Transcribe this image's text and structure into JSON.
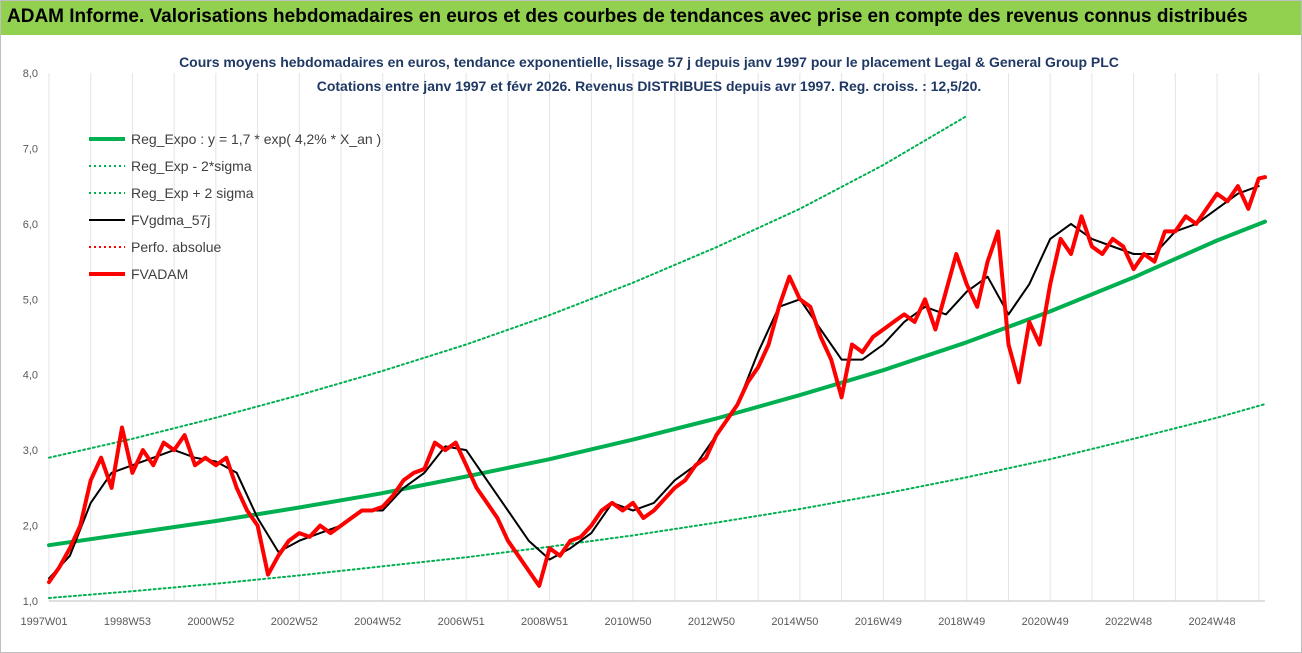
{
  "banner": {
    "title": "ADAM Informe. Valorisations hebdomadaires en euros et des courbes de tendances avec prise en compte des revenus connus distribués",
    "color": "#92d050"
  },
  "chart_data": {
    "type": "line",
    "title_lines": [
      "Cours moyens hebdomadaires en euros, tendance exponentielle, lissage 57 j depuis janv 1997 pour le placement Legal & General Group PLC",
      "Cotations entre janv 1997 et févr 2026. Revenus DISTRIBUES depuis avr 1997. Reg. croiss. : 12,5/20."
    ],
    "xlabel": "",
    "ylabel": "",
    "x_range": [
      1997.0,
      2026.15
    ],
    "ylim": [
      1.0,
      8.0
    ],
    "y_ticks": [
      "1,0",
      "2,0",
      "3,0",
      "4,0",
      "5,0",
      "6,0",
      "7,0",
      "8,0"
    ],
    "x_ticks": [
      {
        "label": "1997W01",
        "x": 1997.0
      },
      {
        "label": "1998W53",
        "x": 1999.0
      },
      {
        "label": "2000W52",
        "x": 2001.0
      },
      {
        "label": "2002W52",
        "x": 2003.0
      },
      {
        "label": "2004W52",
        "x": 2005.0
      },
      {
        "label": "2006W51",
        "x": 2007.0
      },
      {
        "label": "2008W51",
        "x": 2009.0
      },
      {
        "label": "2010W50",
        "x": 2011.0
      },
      {
        "label": "2012W50",
        "x": 2013.0
      },
      {
        "label": "2014W50",
        "x": 2015.0
      },
      {
        "label": "2016W49",
        "x": 2017.0
      },
      {
        "label": "2018W49",
        "x": 2019.0
      },
      {
        "label": "2020W49",
        "x": 2021.0
      },
      {
        "label": "2022W48",
        "x": 2023.0
      },
      {
        "label": "2024W48",
        "x": 2025.0
      }
    ],
    "grid": "vertical",
    "legend_position": "top-left",
    "legend": [
      {
        "name": "Reg_Expo : y = 1,7 * exp( 4,2% *  X_an )",
        "color": "#00b050",
        "style": "solid-thick"
      },
      {
        "name": "Reg_Exp - 2*sigma",
        "color": "#00b050",
        "style": "dotted"
      },
      {
        "name": "Reg_Exp + 2 sigma",
        "color": "#00b050",
        "style": "dotted"
      },
      {
        "name": "FVgdma_57j",
        "color": "#000000",
        "style": "solid"
      },
      {
        "name": "Perfo. absolue",
        "color": "#ff0000",
        "style": "dotted"
      },
      {
        "name": "FVADAM",
        "color": "#ff0000",
        "style": "solid-thick"
      }
    ],
    "series": [
      {
        "name": "Reg_Expo : y = 1,7 * exp( 4,2% *  X_an )",
        "color": "#00b050",
        "x": [
          1997.0,
          1999.0,
          2001.0,
          2003.0,
          2005.0,
          2007.0,
          2009.0,
          2011.0,
          2013.0,
          2015.0,
          2017.0,
          2019.0,
          2021.0,
          2023.0,
          2025.0,
          2026.15
        ],
        "values": [
          1.74,
          1.9,
          2.06,
          2.24,
          2.43,
          2.65,
          2.88,
          3.14,
          3.42,
          3.73,
          4.06,
          4.43,
          4.84,
          5.29,
          5.78,
          6.03
        ]
      },
      {
        "name": "Reg_Exp - 2*sigma",
        "color": "#00b050",
        "x": [
          1997.0,
          1999.0,
          2001.0,
          2003.0,
          2005.0,
          2007.0,
          2009.0,
          2011.0,
          2013.0,
          2015.0,
          2017.0,
          2019.0,
          2021.0,
          2023.0,
          2025.0,
          2026.15
        ],
        "values": [
          1.04,
          1.13,
          1.23,
          1.34,
          1.46,
          1.58,
          1.72,
          1.87,
          2.04,
          2.22,
          2.42,
          2.64,
          2.88,
          3.15,
          3.43,
          3.61
        ]
      },
      {
        "name": "Reg_Exp + 2 sigma",
        "color": "#00b050",
        "x": [
          1997.0,
          1999.0,
          2001.0,
          2003.0,
          2005.0,
          2007.0,
          2009.0,
          2011.0,
          2013.0,
          2015.0,
          2017.0,
          2019.0
        ],
        "values": [
          2.9,
          3.15,
          3.43,
          3.73,
          4.05,
          4.4,
          4.79,
          5.22,
          5.69,
          6.2,
          6.78,
          7.43
        ]
      },
      {
        "name": "FVgdma_57j",
        "color": "#000000",
        "x": [
          1997.0,
          1997.5,
          1998.0,
          1998.5,
          1999.0,
          1999.5,
          2000.0,
          2000.5,
          2001.0,
          2001.5,
          2002.0,
          2002.5,
          2003.0,
          2003.5,
          2004.0,
          2004.5,
          2005.0,
          2005.5,
          2006.0,
          2006.5,
          2007.0,
          2007.5,
          2008.0,
          2008.5,
          2009.0,
          2009.5,
          2010.0,
          2010.5,
          2011.0,
          2011.5,
          2012.0,
          2012.5,
          2013.0,
          2013.5,
          2014.0,
          2014.5,
          2015.0,
          2015.5,
          2016.0,
          2016.5,
          2017.0,
          2017.5,
          2018.0,
          2018.5,
          2019.0,
          2019.5,
          2020.0,
          2020.5,
          2021.0,
          2021.5,
          2022.0,
          2022.5,
          2023.0,
          2023.5,
          2024.0,
          2024.5,
          2025.0,
          2025.5,
          2026.0
        ],
        "values": [
          1.3,
          1.6,
          2.3,
          2.7,
          2.8,
          2.9,
          3.0,
          2.9,
          2.85,
          2.7,
          2.1,
          1.65,
          1.8,
          1.9,
          2.0,
          2.2,
          2.2,
          2.5,
          2.7,
          3.05,
          3.0,
          2.6,
          2.2,
          1.8,
          1.55,
          1.7,
          1.9,
          2.3,
          2.2,
          2.3,
          2.6,
          2.8,
          3.2,
          3.6,
          4.3,
          4.9,
          5.0,
          4.6,
          4.2,
          4.2,
          4.4,
          4.7,
          4.9,
          4.8,
          5.1,
          5.3,
          4.8,
          5.2,
          5.8,
          6.0,
          5.8,
          5.7,
          5.6,
          5.6,
          5.9,
          6.0,
          6.2,
          6.4,
          6.5
        ]
      },
      {
        "name": "FVADAM",
        "color": "#ff0000",
        "x": [
          1997.0,
          1997.25,
          1997.5,
          1997.75,
          1998.0,
          1998.25,
          1998.5,
          1998.75,
          1999.0,
          1999.25,
          1999.5,
          1999.75,
          2000.0,
          2000.25,
          2000.5,
          2000.75,
          2001.0,
          2001.25,
          2001.5,
          2001.75,
          2002.0,
          2002.25,
          2002.5,
          2002.75,
          2003.0,
          2003.25,
          2003.5,
          2003.75,
          2004.0,
          2004.25,
          2004.5,
          2004.75,
          2005.0,
          2005.25,
          2005.5,
          2005.75,
          2006.0,
          2006.25,
          2006.5,
          2006.75,
          2007.0,
          2007.25,
          2007.5,
          2007.75,
          2008.0,
          2008.25,
          2008.5,
          2008.75,
          2009.0,
          2009.25,
          2009.5,
          2009.75,
          2010.0,
          2010.25,
          2010.5,
          2010.75,
          2011.0,
          2011.25,
          2011.5,
          2011.75,
          2012.0,
          2012.25,
          2012.5,
          2012.75,
          2013.0,
          2013.25,
          2013.5,
          2013.75,
          2014.0,
          2014.25,
          2014.5,
          2014.75,
          2015.0,
          2015.25,
          2015.5,
          2015.75,
          2016.0,
          2016.25,
          2016.5,
          2016.75,
          2017.0,
          2017.25,
          2017.5,
          2017.75,
          2018.0,
          2018.25,
          2018.5,
          2018.75,
          2019.0,
          2019.25,
          2019.5,
          2019.75,
          2020.0,
          2020.25,
          2020.5,
          2020.75,
          2021.0,
          2021.25,
          2021.5,
          2021.75,
          2022.0,
          2022.25,
          2022.5,
          2022.75,
          2023.0,
          2023.25,
          2023.5,
          2023.75,
          2024.0,
          2024.25,
          2024.5,
          2024.75,
          2025.0,
          2025.25,
          2025.5,
          2025.75,
          2026.0,
          2026.15
        ],
        "values": [
          1.25,
          1.45,
          1.7,
          2.0,
          2.6,
          2.9,
          2.5,
          3.3,
          2.7,
          3.0,
          2.8,
          3.1,
          3.0,
          3.2,
          2.8,
          2.9,
          2.8,
          2.9,
          2.5,
          2.2,
          2.0,
          1.35,
          1.6,
          1.8,
          1.9,
          1.85,
          2.0,
          1.9,
          2.0,
          2.1,
          2.2,
          2.2,
          2.25,
          2.4,
          2.6,
          2.7,
          2.75,
          3.1,
          3.0,
          3.1,
          2.8,
          2.5,
          2.3,
          2.1,
          1.8,
          1.6,
          1.4,
          1.2,
          1.7,
          1.6,
          1.8,
          1.85,
          2.0,
          2.2,
          2.3,
          2.2,
          2.3,
          2.1,
          2.2,
          2.35,
          2.5,
          2.6,
          2.8,
          2.9,
          3.2,
          3.4,
          3.6,
          3.9,
          4.1,
          4.4,
          4.9,
          5.3,
          5.0,
          4.9,
          4.5,
          4.2,
          3.7,
          4.4,
          4.3,
          4.5,
          4.6,
          4.7,
          4.8,
          4.7,
          5.0,
          4.6,
          5.1,
          5.6,
          5.2,
          4.9,
          5.5,
          5.9,
          4.4,
          3.9,
          4.7,
          4.4,
          5.2,
          5.8,
          5.6,
          6.1,
          5.7,
          5.6,
          5.8,
          5.7,
          5.4,
          5.6,
          5.5,
          5.9,
          5.9,
          6.1,
          6.0,
          6.2,
          6.4,
          6.3,
          6.5,
          6.2,
          6.6,
          6.62
        ]
      }
    ]
  }
}
